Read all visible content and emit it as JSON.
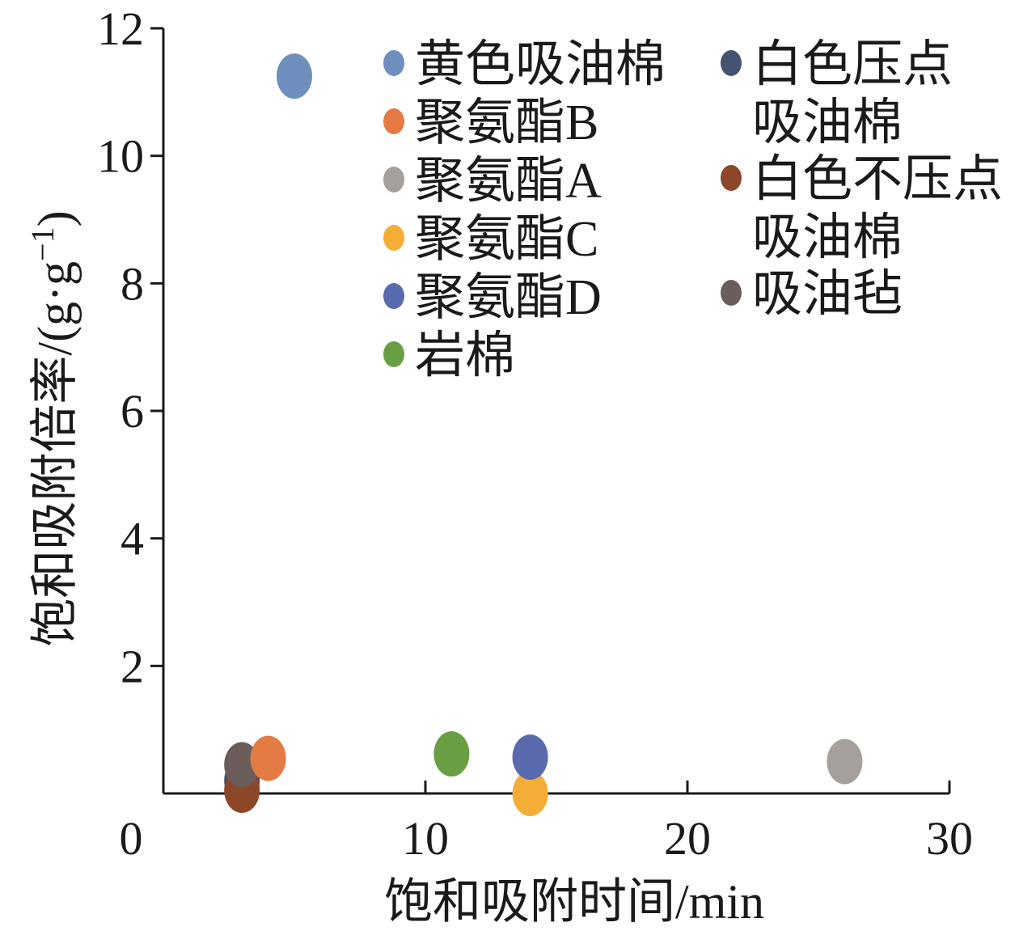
{
  "chart_data": {
    "type": "scatter",
    "xlabel": "饱和吸附时间/min",
    "ylabel": "饱和吸附倍率/(g·g",
    "ylabel_sup": "−1",
    "ylabel_close": ")",
    "xlim": [
      0,
      30
    ],
    "ylim": [
      0,
      12
    ],
    "x_ticks": [
      0,
      10,
      20,
      30
    ],
    "y_ticks": [
      2,
      4,
      6,
      8,
      10,
      12
    ],
    "grid": false,
    "legend_position": "top-right",
    "series": [
      {
        "name": "黄色吸油棉",
        "color": "#6e8fbd",
        "x": 5,
        "y": 11.25
      },
      {
        "name": "聚氨酯B",
        "color": "#e47a44",
        "x": 4,
        "y": 0.55
      },
      {
        "name": "聚氨酯A",
        "color": "#a5a09c",
        "x": 26,
        "y": 0.5
      },
      {
        "name": "聚氨酯C",
        "color": "#f4ae38",
        "x": 14,
        "y": 0.0
      },
      {
        "name": "聚氨酯D",
        "color": "#5a6aae",
        "x": 14,
        "y": 0.57
      },
      {
        "name": "岩棉",
        "color": "#6a9e42",
        "x": 11,
        "y": 0.62
      },
      {
        "name": "白色压点吸油棉",
        "color": "#42546f",
        "x": 3,
        "y": 0.2
      },
      {
        "name": "白色不压点吸油棉",
        "color": "#8c4628",
        "x": 3,
        "y": 0.05
      },
      {
        "name": "吸油毡",
        "color": "#6a5d5a",
        "x": 3,
        "y": 0.45
      }
    ],
    "legend_left": [
      {
        "label": "黄色吸油棉",
        "color": "#6e8fbd"
      },
      {
        "label": "聚氨酯B",
        "color": "#e47a44"
      },
      {
        "label": "聚氨酯A",
        "color": "#a5a09c"
      },
      {
        "label": "聚氨酯C",
        "color": "#f4ae38"
      },
      {
        "label": "聚氨酯D",
        "color": "#5a6aae"
      },
      {
        "label": "岩棉",
        "color": "#6a9e42"
      }
    ],
    "legend_right": [
      {
        "lines": [
          "白色压点",
          "吸油棉"
        ],
        "color": "#42546f"
      },
      {
        "lines": [
          "白色不压点",
          "吸油棉"
        ],
        "color": "#8c4628"
      },
      {
        "lines": [
          "吸油毡"
        ],
        "color": "#6a5d5a"
      }
    ]
  }
}
